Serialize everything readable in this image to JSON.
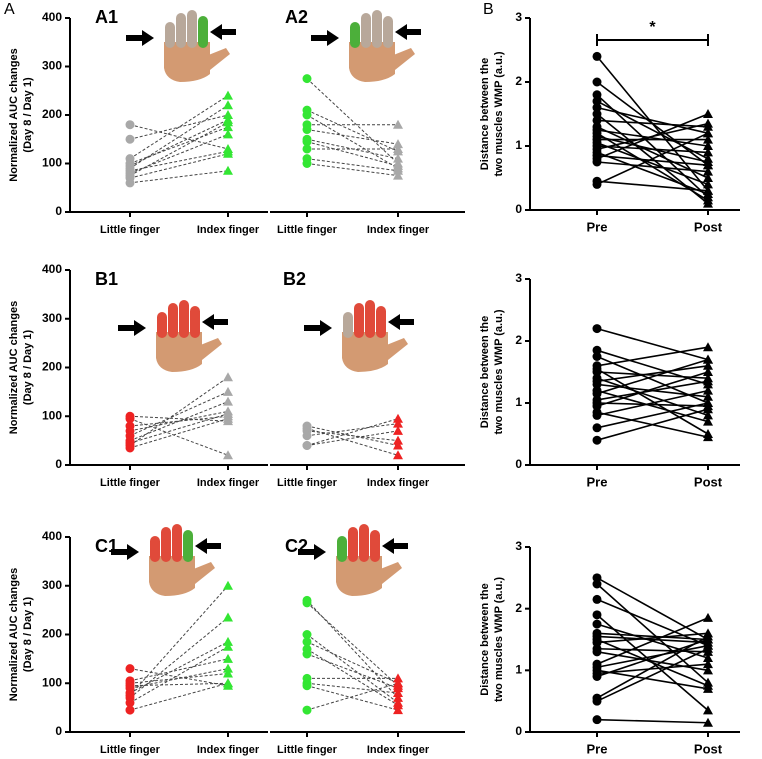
{
  "figure_labels": [
    "A",
    "B"
  ],
  "chart_data": [
    {
      "type": "paired",
      "panel": "A1",
      "ylabel": [
        "Normalized AUC changes",
        "(Day 8 / Day 1)"
      ],
      "categories": [
        "Little finger",
        "Index finger"
      ],
      "colors": [
        "#a8a8a8",
        "#33e633"
      ],
      "markers": [
        "circle",
        "triangle"
      ],
      "line_style": "dashed",
      "ylim": [
        0,
        400
      ],
      "yticks": [
        0,
        100,
        200,
        300,
        400
      ],
      "pairs": [
        [
          180,
          130
        ],
        [
          150,
          200
        ],
        [
          110,
          240
        ],
        [
          100,
          175
        ],
        [
          95,
          190
        ],
        [
          90,
          220
        ],
        [
          85,
          125
        ],
        [
          80,
          160
        ],
        [
          75,
          185
        ],
        [
          70,
          120
        ],
        [
          60,
          85
        ]
      ]
    },
    {
      "type": "paired",
      "panel": "A2",
      "categories": [
        "Little finger",
        "Index finger"
      ],
      "colors": [
        "#33e633",
        "#a8a8a8"
      ],
      "markers": [
        "circle",
        "triangle"
      ],
      "line_style": "dashed",
      "ylim": [
        0,
        400
      ],
      "pairs": [
        [
          275,
          100
        ],
        [
          210,
          125
        ],
        [
          200,
          90
        ],
        [
          180,
          180
        ],
        [
          170,
          140
        ],
        [
          150,
          110
        ],
        [
          145,
          95
        ],
        [
          130,
          130
        ],
        [
          110,
          85
        ],
        [
          100,
          75
        ]
      ]
    },
    {
      "type": "paired",
      "panel": "B1",
      "ylabel": [
        "Normalized AUC changes",
        "(Day 8 / Day 1)"
      ],
      "categories": [
        "Little finger",
        "Index finger"
      ],
      "colors": [
        "#ee2222",
        "#a8a8a8"
      ],
      "markers": [
        "circle",
        "triangle"
      ],
      "line_style": "dashed",
      "ylim": [
        0,
        400
      ],
      "yticks": [
        0,
        100,
        200,
        300,
        400
      ],
      "pairs": [
        [
          100,
          90
        ],
        [
          95,
          20
        ],
        [
          80,
          100
        ],
        [
          70,
          110
        ],
        [
          60,
          150
        ],
        [
          50,
          130
        ],
        [
          45,
          105
        ],
        [
          40,
          180
        ],
        [
          35,
          95
        ]
      ]
    },
    {
      "type": "paired",
      "panel": "B2",
      "categories": [
        "Little finger",
        "Index finger"
      ],
      "colors": [
        "#a8a8a8",
        "#ee2222"
      ],
      "markers": [
        "circle",
        "triangle"
      ],
      "line_style": "dashed",
      "ylim": [
        0,
        400
      ],
      "pairs": [
        [
          80,
          40
        ],
        [
          75,
          20
        ],
        [
          70,
          50
        ],
        [
          60,
          85
        ],
        [
          40,
          95
        ],
        [
          40,
          70
        ]
      ]
    },
    {
      "type": "paired",
      "panel": "C1",
      "ylabel": [
        "Normalized AUC changes",
        "(Day 8 / Day 1)"
      ],
      "categories": [
        "Little finger",
        "Index finger"
      ],
      "colors": [
        "#ee2222",
        "#33e633"
      ],
      "markers": [
        "circle",
        "triangle"
      ],
      "line_style": "dashed",
      "ylim": [
        0,
        400
      ],
      "yticks": [
        0,
        100,
        200,
        300,
        400
      ],
      "pairs": [
        [
          130,
          95
        ],
        [
          105,
          150
        ],
        [
          100,
          120
        ],
        [
          95,
          100
        ],
        [
          90,
          130
        ],
        [
          80,
          185
        ],
        [
          75,
          300
        ],
        [
          70,
          235
        ],
        [
          60,
          175
        ],
        [
          45,
          100
        ]
      ]
    },
    {
      "type": "paired",
      "panel": "C2",
      "categories": [
        "Little finger",
        "Index finger"
      ],
      "colors": [
        "#33e633",
        "#ee2222"
      ],
      "markers": [
        "circle",
        "triangle"
      ],
      "line_style": "dashed",
      "ylim": [
        0,
        400
      ],
      "pairs": [
        [
          270,
          70
        ],
        [
          265,
          95
        ],
        [
          200,
          60
        ],
        [
          185,
          100
        ],
        [
          170,
          55
        ],
        [
          160,
          90
        ],
        [
          110,
          110
        ],
        [
          100,
          80
        ],
        [
          95,
          45
        ],
        [
          45,
          100
        ]
      ]
    },
    {
      "type": "paired",
      "ylabel": [
        "Distance between the",
        "two muscles WMP (a.u.)"
      ],
      "categories": [
        "Pre",
        "Post"
      ],
      "colors": [
        "#000000",
        "#000000"
      ],
      "markers": [
        "circle",
        "triangle"
      ],
      "line_style": "solid",
      "ylim": [
        0,
        3
      ],
      "yticks": [
        0,
        1,
        2,
        3
      ],
      "annotation": "*",
      "pairs": [
        [
          2.4,
          0.3
        ],
        [
          2.0,
          0.7
        ],
        [
          1.8,
          0.2
        ],
        [
          1.7,
          0.8
        ],
        [
          1.6,
          1.2
        ],
        [
          1.5,
          0.1
        ],
        [
          1.4,
          1.3
        ],
        [
          1.3,
          0.5
        ],
        [
          1.25,
          1.0
        ],
        [
          1.2,
          0.15
        ],
        [
          1.15,
          0.75
        ],
        [
          1.1,
          1.1
        ],
        [
          1.05,
          0.4
        ],
        [
          1.0,
          0.9
        ],
        [
          0.95,
          1.35
        ],
        [
          0.9,
          0.25
        ],
        [
          0.85,
          0.7
        ],
        [
          0.8,
          1.5
        ],
        [
          0.75,
          0.6
        ],
        [
          0.45,
          0.3
        ],
        [
          0.4,
          1.2
        ]
      ]
    },
    {
      "type": "paired",
      "ylabel": [
        "Distance between the",
        "two muscles WMP (a.u.)"
      ],
      "categories": [
        "Pre",
        "Post"
      ],
      "colors": [
        "#000000",
        "#000000"
      ],
      "markers": [
        "circle",
        "triangle"
      ],
      "line_style": "solid",
      "ylim": [
        0,
        3
      ],
      "yticks": [
        0,
        1,
        2,
        3
      ],
      "pairs": [
        [
          2.2,
          1.7
        ],
        [
          1.85,
          1.3
        ],
        [
          1.75,
          1.0
        ],
        [
          1.6,
          1.9
        ],
        [
          1.55,
          0.5
        ],
        [
          1.5,
          1.4
        ],
        [
          1.4,
          0.8
        ],
        [
          1.35,
          1.6
        ],
        [
          1.3,
          1.1
        ],
        [
          1.2,
          0.7
        ],
        [
          1.15,
          1.7
        ],
        [
          1.05,
          1.35
        ],
        [
          1.0,
          0.95
        ],
        [
          0.95,
          1.5
        ],
        [
          0.85,
          0.45
        ],
        [
          0.8,
          1.2
        ],
        [
          0.6,
          1.0
        ],
        [
          0.4,
          0.9
        ]
      ]
    },
    {
      "type": "paired",
      "ylabel": [
        "Distance between the",
        "two muscles WMP (a.u.)"
      ],
      "categories": [
        "Pre",
        "Post"
      ],
      "colors": [
        "#000000",
        "#000000"
      ],
      "markers": [
        "circle",
        "triangle"
      ],
      "line_style": "solid",
      "ylim": [
        0,
        3
      ],
      "yticks": [
        0,
        1,
        2,
        3
      ],
      "pairs": [
        [
          2.5,
          1.5
        ],
        [
          2.4,
          0.8
        ],
        [
          2.15,
          1.4
        ],
        [
          1.9,
          0.35
        ],
        [
          1.75,
          1.2
        ],
        [
          1.6,
          1.5
        ],
        [
          1.55,
          1.45
        ],
        [
          1.5,
          0.75
        ],
        [
          1.45,
          1.6
        ],
        [
          1.35,
          1.3
        ],
        [
          1.3,
          1.0
        ],
        [
          1.1,
          1.85
        ],
        [
          1.05,
          1.4
        ],
        [
          1.0,
          0.7
        ],
        [
          0.95,
          1.1
        ],
        [
          0.9,
          1.5
        ],
        [
          0.55,
          1.55
        ],
        [
          0.5,
          1.35
        ],
        [
          0.2,
          0.15
        ]
      ]
    }
  ]
}
